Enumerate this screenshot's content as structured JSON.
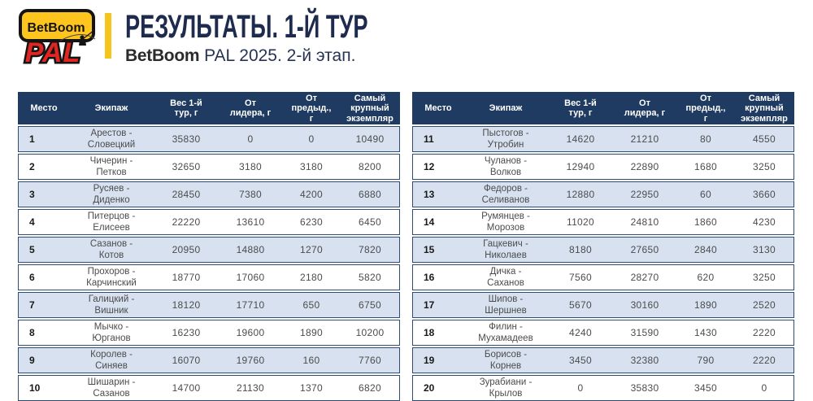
{
  "header": {
    "title": "РЕЗУЛЬТАТЫ. 1-Й ТУР",
    "subtitle_brand": "BetBoom",
    "subtitle_rest": " PAL 2025. 2-й этап.",
    "logo": {
      "top": "BetBoom",
      "bottom": "PAL"
    }
  },
  "colors": {
    "header_navy": "#203b61",
    "row_alt_blue": "#d7e1f0",
    "row_border": "#2e4c76",
    "accent_yellow": "#f6c51c",
    "logo_red": "#e02620",
    "title_navy": "#1e2b4e"
  },
  "table": {
    "columns": [
      "Место",
      "Экипаж",
      "Вес 1-й\nтур, г",
      "От\nлидера, г",
      "От\nпредыд.,\nг",
      "Самый\nкрупный\nэкземпляр"
    ]
  },
  "left_rows": [
    {
      "place": "1",
      "team": "Арестов -\nСловецкий",
      "weight": "35830",
      "from_leader": "0",
      "from_prev": "0",
      "biggest": "10490"
    },
    {
      "place": "2",
      "team": "Чичерин -\nПетков",
      "weight": "32650",
      "from_leader": "3180",
      "from_prev": "3180",
      "biggest": "8200"
    },
    {
      "place": "3",
      "team": "Русяев -\nДиденко",
      "weight": "28450",
      "from_leader": "7380",
      "from_prev": "4200",
      "biggest": "6880"
    },
    {
      "place": "4",
      "team": "Питерцов -\nЕлисеев",
      "weight": "22220",
      "from_leader": "13610",
      "from_prev": "6230",
      "biggest": "6450"
    },
    {
      "place": "5",
      "team": "Сазанов -\nКотов",
      "weight": "20950",
      "from_leader": "14880",
      "from_prev": "1270",
      "biggest": "7820"
    },
    {
      "place": "6",
      "team": "Прохоров -\nКарчинский",
      "weight": "18770",
      "from_leader": "17060",
      "from_prev": "2180",
      "biggest": "5820"
    },
    {
      "place": "7",
      "team": "Галицкий -\nВишник",
      "weight": "18120",
      "from_leader": "17710",
      "from_prev": "650",
      "biggest": "6750"
    },
    {
      "place": "8",
      "team": "Мычко -\nЮрганов",
      "weight": "16230",
      "from_leader": "19600",
      "from_prev": "1890",
      "biggest": "10200"
    },
    {
      "place": "9",
      "team": "Королев -\nСиняев",
      "weight": "16070",
      "from_leader": "19760",
      "from_prev": "160",
      "biggest": "7760"
    },
    {
      "place": "10",
      "team": "Шишарин -\nСазанов",
      "weight": "14700",
      "from_leader": "21130",
      "from_prev": "1370",
      "biggest": "6820"
    }
  ],
  "right_rows": [
    {
      "place": "11",
      "team": "Пыстогов -\nУтробин",
      "weight": "14620",
      "from_leader": "21210",
      "from_prev": "80",
      "biggest": "4550"
    },
    {
      "place": "12",
      "team": "Чуланов -\nВолков",
      "weight": "12940",
      "from_leader": "22890",
      "from_prev": "1680",
      "biggest": "3250"
    },
    {
      "place": "13",
      "team": "Федоров -\nСеливанов",
      "weight": "12880",
      "from_leader": "22950",
      "from_prev": "60",
      "biggest": "3660"
    },
    {
      "place": "14",
      "team": "Румянцев -\nМорозов",
      "weight": "11020",
      "from_leader": "24810",
      "from_prev": "1860",
      "biggest": "4230"
    },
    {
      "place": "15",
      "team": "Гацкевич -\nНиколаев",
      "weight": "8180",
      "from_leader": "27650",
      "from_prev": "2840",
      "biggest": "3130"
    },
    {
      "place": "16",
      "team": "Дичка -\nСаханов",
      "weight": "7560",
      "from_leader": "28270",
      "from_prev": "620",
      "biggest": "3250"
    },
    {
      "place": "17",
      "team": "Шипов -\nШершнев",
      "weight": "5670",
      "from_leader": "30160",
      "from_prev": "1890",
      "biggest": "2520"
    },
    {
      "place": "18",
      "team": "Филин -\nМухамадеев",
      "weight": "4240",
      "from_leader": "31590",
      "from_prev": "1430",
      "biggest": "2220"
    },
    {
      "place": "19",
      "team": "Борисов -\nКорнев",
      "weight": "3450",
      "from_leader": "32380",
      "from_prev": "790",
      "biggest": "2220"
    },
    {
      "place": "20",
      "team": "Зурабиани -\nКрылов",
      "weight": "0",
      "from_leader": "35830",
      "from_prev": "3450",
      "biggest": "0"
    }
  ]
}
